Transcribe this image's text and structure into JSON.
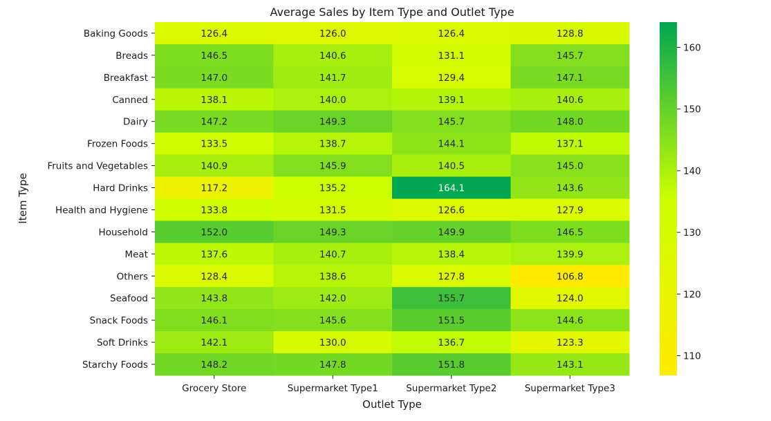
{
  "chart_data": {
    "type": "heatmap",
    "title": "Average Sales by Item Type and Outlet Type",
    "xlabel": "Outlet Type",
    "ylabel": "Item Type",
    "columns": [
      "Grocery Store",
      "Supermarket Type1",
      "Supermarket Type2",
      "Supermarket Type3"
    ],
    "rows": [
      "Baking Goods",
      "Breads",
      "Breakfast",
      "Canned",
      "Dairy",
      "Frozen Foods",
      "Fruits and Vegetables",
      "Hard Drinks",
      "Health and Hygiene",
      "Household",
      "Meat",
      "Others",
      "Seafood",
      "Snack Foods",
      "Soft Drinks",
      "Starchy Foods"
    ],
    "values": [
      [
        126.4,
        126.0,
        126.4,
        128.8
      ],
      [
        146.5,
        140.6,
        131.1,
        145.7
      ],
      [
        147.0,
        141.7,
        129.4,
        147.1
      ],
      [
        138.1,
        140.0,
        139.1,
        140.6
      ],
      [
        147.2,
        149.3,
        145.7,
        148.0
      ],
      [
        133.5,
        138.7,
        144.1,
        137.1
      ],
      [
        140.9,
        145.9,
        140.5,
        145.0
      ],
      [
        117.2,
        135.2,
        164.1,
        143.6
      ],
      [
        133.8,
        131.5,
        126.6,
        127.9
      ],
      [
        152.0,
        149.3,
        149.9,
        146.5
      ],
      [
        137.6,
        140.7,
        138.4,
        139.9
      ],
      [
        128.4,
        138.6,
        127.8,
        106.8
      ],
      [
        143.8,
        142.0,
        155.7,
        124.0
      ],
      [
        146.1,
        145.6,
        151.5,
        144.6
      ],
      [
        142.1,
        130.0,
        136.7,
        123.3
      ],
      [
        148.2,
        147.8,
        151.8,
        143.1
      ]
    ],
    "colormap": {
      "low": "#ffeb00",
      "mid": "#ccff00",
      "high": "#00a651"
    },
    "vmin": 106.8,
    "vmax": 164.1,
    "colorbar_ticks": [
      110,
      120,
      130,
      140,
      150,
      160
    ],
    "annotation_format": "0.0",
    "annotation_text_colors": {
      "dark": "#262626",
      "light": "#ffffff"
    }
  }
}
